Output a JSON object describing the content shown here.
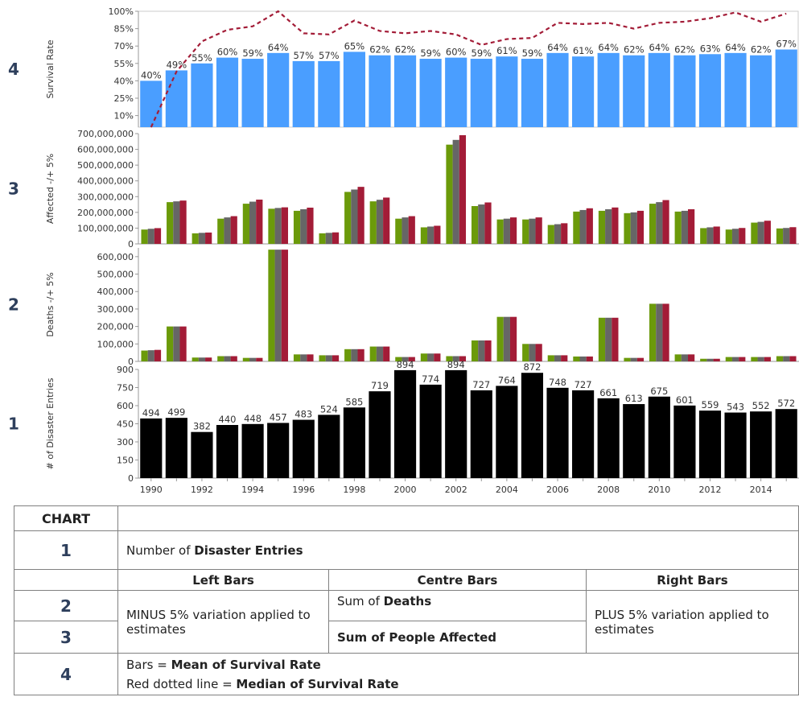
{
  "chart_data": [
    {
      "type": "bar",
      "panel": "4",
      "ylabel": "Survival Rate",
      "yticks": [
        "10%",
        "25%",
        "40%",
        "55%",
        "70%",
        "85%",
        "100%"
      ],
      "ylim": [
        0,
        100
      ],
      "categories": [
        1990,
        1991,
        1992,
        1993,
        1994,
        1995,
        1996,
        1997,
        1998,
        1999,
        2000,
        2001,
        2002,
        2003,
        2004,
        2005,
        2006,
        2007,
        2008,
        2009,
        2010,
        2011,
        2012,
        2013,
        2014,
        2015
      ],
      "series": [
        {
          "values": [
            40,
            49,
            55,
            60,
            59,
            64,
            57,
            57,
            65,
            62,
            62,
            59,
            60,
            59,
            61,
            59,
            64,
            61,
            64,
            62,
            64,
            62,
            63,
            64,
            62,
            67
          ],
          "labels": [
            "40%",
            "49%",
            "55%",
            "60%",
            "59%",
            "64%",
            "57%",
            "57%",
            "65%",
            "62%",
            "62%",
            "59%",
            "60%",
            "59%",
            "61%",
            "59%",
            "64%",
            "61%",
            "64%",
            "62%",
            "64%",
            "62%",
            "63%",
            "64%",
            "62%",
            "67%"
          ],
          "color": "#4a9eff"
        },
        {
          "type": "line",
          "style": "dotted",
          "values": [
            0,
            48,
            74,
            84,
            87,
            100,
            81,
            80,
            92,
            83,
            81,
            83,
            80,
            71,
            76,
            77,
            90,
            89,
            90,
            85,
            90,
            91,
            94,
            99,
            91,
            98
          ],
          "color": "#a31c37"
        }
      ]
    },
    {
      "type": "bar",
      "panel": "3",
      "ylabel": "Affected -/+ 5%",
      "yticks": [
        "0",
        "100,000,000",
        "200,000,000",
        "300,000,000",
        "400,000,000",
        "500,000,000",
        "600,000,000",
        "700,000,000"
      ],
      "ylim": [
        0,
        700000000
      ],
      "categories": [
        1990,
        1991,
        1992,
        1993,
        1994,
        1995,
        1996,
        1997,
        1998,
        1999,
        2000,
        2001,
        2002,
        2003,
        2004,
        2005,
        2006,
        2007,
        2008,
        2009,
        2010,
        2011,
        2012,
        2013,
        2014,
        2015
      ],
      "series": [
        {
          "values": [
            91000000,
            265000000,
            67000000,
            160000000,
            255000000,
            223000000,
            210000000,
            67000000,
            330000000,
            270000000,
            160000000,
            105000000,
            630000000,
            240000000,
            155000000,
            155000000,
            120000000,
            205000000,
            210000000,
            195000000,
            255000000,
            205000000,
            100000000,
            91000000,
            135000000,
            98000000
          ],
          "color": "#6b9a0a"
        },
        {
          "values": [
            96000000,
            270000000,
            70000000,
            168000000,
            268000000,
            228000000,
            220000000,
            70000000,
            345000000,
            280000000,
            168000000,
            110000000,
            660000000,
            250000000,
            160000000,
            160000000,
            125000000,
            215000000,
            220000000,
            200000000,
            265000000,
            210000000,
            105000000,
            96000000,
            140000000,
            101000000
          ],
          "color": "#666666"
        },
        {
          "values": [
            100000000,
            275000000,
            72000000,
            176000000,
            281000000,
            232000000,
            230000000,
            73000000,
            362000000,
            294000000,
            176000000,
            115000000,
            690000000,
            263000000,
            168000000,
            168000000,
            131000000,
            226000000,
            231000000,
            210000000,
            278000000,
            220000000,
            110000000,
            101000000,
            147000000,
            106000000
          ],
          "color": "#a31c37"
        }
      ]
    },
    {
      "type": "bar",
      "panel": "2",
      "ylabel": "Deaths -/+ 5%",
      "yticks": [
        "0",
        "100,000",
        "200,000",
        "300,000",
        "400,000",
        "500,000",
        "600,000"
      ],
      "ylim": [
        0,
        650000
      ],
      "categories": [
        1990,
        1991,
        1992,
        1993,
        1994,
        1995,
        1996,
        1997,
        1998,
        1999,
        2000,
        2001,
        2002,
        2003,
        2004,
        2005,
        2006,
        2007,
        2008,
        2009,
        2010,
        2011,
        2012,
        2013,
        2014,
        2015
      ],
      "series": [
        {
          "values": [
            62000,
            200000,
            22000,
            30000,
            20000,
            640000,
            40000,
            35000,
            70000,
            85000,
            25000,
            45000,
            30000,
            120000,
            255000,
            100000,
            35000,
            28000,
            250000,
            20000,
            330000,
            40000,
            15000,
            25000,
            25000,
            30000
          ],
          "color": "#6b9a0a"
        },
        {
          "values": [
            64000,
            200000,
            22000,
            30000,
            20000,
            640000,
            40000,
            35000,
            70000,
            85000,
            25000,
            45000,
            30000,
            120000,
            255000,
            100000,
            35000,
            28000,
            250000,
            20000,
            330000,
            40000,
            15000,
            25000,
            25000,
            30000
          ],
          "color": "#666666"
        },
        {
          "values": [
            66000,
            200000,
            22000,
            30000,
            20000,
            640000,
            40000,
            35000,
            70000,
            85000,
            25000,
            45000,
            30000,
            120000,
            255000,
            100000,
            35000,
            28000,
            250000,
            20000,
            330000,
            40000,
            15000,
            25000,
            25000,
            30000
          ],
          "color": "#a31c37"
        }
      ]
    },
    {
      "type": "bar",
      "panel": "1",
      "ylabel": "# of Disaster Entries",
      "yticks": [
        "0",
        "150",
        "300",
        "450",
        "600",
        "750",
        "900"
      ],
      "ylim": [
        0,
        900
      ],
      "categories": [
        1990,
        1991,
        1992,
        1993,
        1994,
        1995,
        1996,
        1997,
        1998,
        1999,
        2000,
        2001,
        2002,
        2003,
        2004,
        2005,
        2006,
        2007,
        2008,
        2009,
        2010,
        2011,
        2012,
        2013,
        2014,
        2015
      ],
      "xticks": [
        "1990",
        "1992",
        "1994",
        "1996",
        "1998",
        "2000",
        "2002",
        "2004",
        "2006",
        "2008",
        "2010",
        "2012",
        "2014"
      ],
      "series": [
        {
          "values": [
            494,
            499,
            382,
            440,
            448,
            457,
            483,
            524,
            585,
            719,
            894,
            774,
            894,
            727,
            764,
            872,
            748,
            727,
            661,
            613,
            675,
            601,
            559,
            543,
            552,
            572
          ],
          "labels": [
            "494",
            "499",
            "382",
            "440",
            "448",
            "457",
            "483",
            "524",
            "585",
            "719",
            "894",
            "774",
            "894",
            "727",
            "764",
            "872",
            "748",
            "727",
            "661",
            "613",
            "675",
            "601",
            "559",
            "543",
            "552",
            "572"
          ],
          "color": "#000000"
        }
      ]
    }
  ],
  "legend_table": {
    "header": "CHART",
    "row1": {
      "num": "1",
      "pre": "Number of ",
      "bold": "Disaster Entries"
    },
    "cols": {
      "left": "Left Bars",
      "centre": "Centre Bars",
      "right": "Right Bars"
    },
    "row2": {
      "num": "2",
      "pre": "Sum of ",
      "bold": "Deaths"
    },
    "row3": {
      "num": "3",
      "bold": "Sum of People Affected"
    },
    "left_text": "MINUS 5% variation applied to estimates",
    "right_text": "PLUS 5% variation applied to estimates",
    "row4": {
      "num": "4",
      "line1_pre": "Bars = ",
      "line1_bold": "Mean of Survival Rate",
      "line2_pre": "Red dotted line = ",
      "line2_bold": "Median of Survival Rate"
    }
  }
}
